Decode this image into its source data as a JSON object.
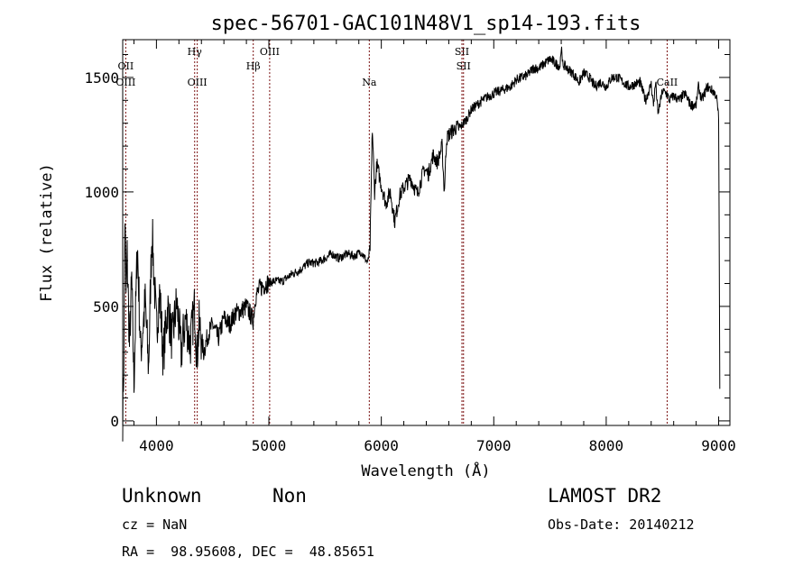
{
  "chart_data": {
    "type": "line",
    "title": "spec-56701-GAC101N48V1_sp14-193.fits",
    "xlabel": "Wavelength (Å)",
    "ylabel": "Flux (relative)",
    "xlim": [
      3700,
      9100
    ],
    "ylim": [
      -20,
      1665
    ],
    "x_ticks": [
      4000,
      5000,
      6000,
      7000,
      8000,
      9000
    ],
    "y_ticks": [
      0,
      500,
      1000,
      1500
    ],
    "grid": false,
    "series": [
      {
        "x": [
          3700,
          3710,
          3720,
          3730,
          3740,
          3760,
          3780,
          3800,
          3830,
          3860,
          3900,
          3930,
          3960,
          4000,
          4030,
          4060,
          4100,
          4140,
          4180,
          4220,
          4260,
          4300,
          4340,
          4360,
          4380,
          4420,
          4460,
          4500,
          4550,
          4600,
          4650,
          4700,
          4750,
          4800,
          4860,
          4880,
          4920,
          4980,
          5050,
          5120,
          5200,
          5280,
          5350,
          5430,
          5500,
          5560,
          5620,
          5700,
          5760,
          5820,
          5880,
          5900,
          5920,
          5940,
          5960,
          6000,
          6040,
          6080,
          6120,
          6160,
          6200,
          6260,
          6320,
          6380,
          6420,
          6460,
          6500,
          6540,
          6560,
          6580,
          6600,
          6620,
          6660,
          6700,
          6760,
          6800,
          6850,
          6900,
          6960,
          7000,
          7050,
          7100,
          7150,
          7200,
          7250,
          7300,
          7350,
          7400,
          7450,
          7500,
          7550,
          7590,
          7600,
          7610,
          7650,
          7700,
          7760,
          7800,
          7850,
          7900,
          7950,
          8000,
          8050,
          8100,
          8150,
          8200,
          8250,
          8300,
          8350,
          8400,
          8420,
          8440,
          8460,
          8500,
          8540,
          8560,
          8600,
          8650,
          8700,
          8750,
          8800,
          8820,
          8850,
          8900,
          8950,
          8980,
          9000,
          9010
        ],
        "y": [
          20,
          250,
          900,
          550,
          720,
          330,
          620,
          160,
          780,
          300,
          520,
          230,
          840,
          400,
          560,
          280,
          500,
          350,
          520,
          300,
          450,
          330,
          500,
          280,
          420,
          300,
          380,
          420,
          360,
          450,
          420,
          470,
          480,
          500,
          440,
          540,
          580,
          600,
          610,
          610,
          640,
          660,
          690,
          690,
          710,
          730,
          710,
          730,
          720,
          740,
          690,
          760,
          1280,
          1000,
          1120,
          1030,
          950,
          1000,
          870,
          980,
          1020,
          1060,
          990,
          1100,
          1080,
          1160,
          1130,
          1200,
          1000,
          1230,
          1250,
          1260,
          1280,
          1280,
          1320,
          1360,
          1380,
          1400,
          1420,
          1430,
          1440,
          1450,
          1460,
          1490,
          1500,
          1510,
          1540,
          1540,
          1560,
          1580,
          1560,
          1550,
          1640,
          1560,
          1540,
          1520,
          1480,
          1520,
          1500,
          1460,
          1480,
          1460,
          1500,
          1500,
          1480,
          1460,
          1470,
          1480,
          1400,
          1470,
          1380,
          1480,
          1340,
          1440,
          1430,
          1400,
          1420,
          1400,
          1430,
          1380,
          1380,
          1460,
          1400,
          1460,
          1440,
          1420,
          1320,
          140
        ]
      }
    ],
    "lines": [
      {
        "x": 3727,
        "labels": [
          "OII",
          "OIII"
        ],
        "rows": [
          0,
          1
        ]
      },
      {
        "x": 4340,
        "labels": [
          "Hγ"
        ],
        "rows": [
          -1
        ]
      },
      {
        "x": 4363,
        "labels": [
          "OIII"
        ],
        "rows": [
          1
        ]
      },
      {
        "x": 4861,
        "labels": [
          "Hβ"
        ],
        "rows": [
          0
        ]
      },
      {
        "x": 5007,
        "labels": [
          "OIII"
        ],
        "rows": [
          -1
        ]
      },
      {
        "x": 5893,
        "labels": [
          "Na"
        ],
        "rows": [
          1
        ]
      },
      {
        "x": 6717,
        "labels": [
          "SII"
        ],
        "rows": [
          -1
        ]
      },
      {
        "x": 6731,
        "labels": [
          "SII"
        ],
        "rows": [
          0
        ]
      },
      {
        "x": 8542,
        "labels": [
          "CaII"
        ],
        "rows": [
          1
        ]
      }
    ]
  },
  "info": {
    "object_class": "Unknown",
    "object_subclass": "Non",
    "redshift": "cz = NaN",
    "coords": "RA =  98.95608, DEC =  48.85651",
    "survey": "LAMOST DR2",
    "obs_date": "Obs-Date: 20140212"
  }
}
